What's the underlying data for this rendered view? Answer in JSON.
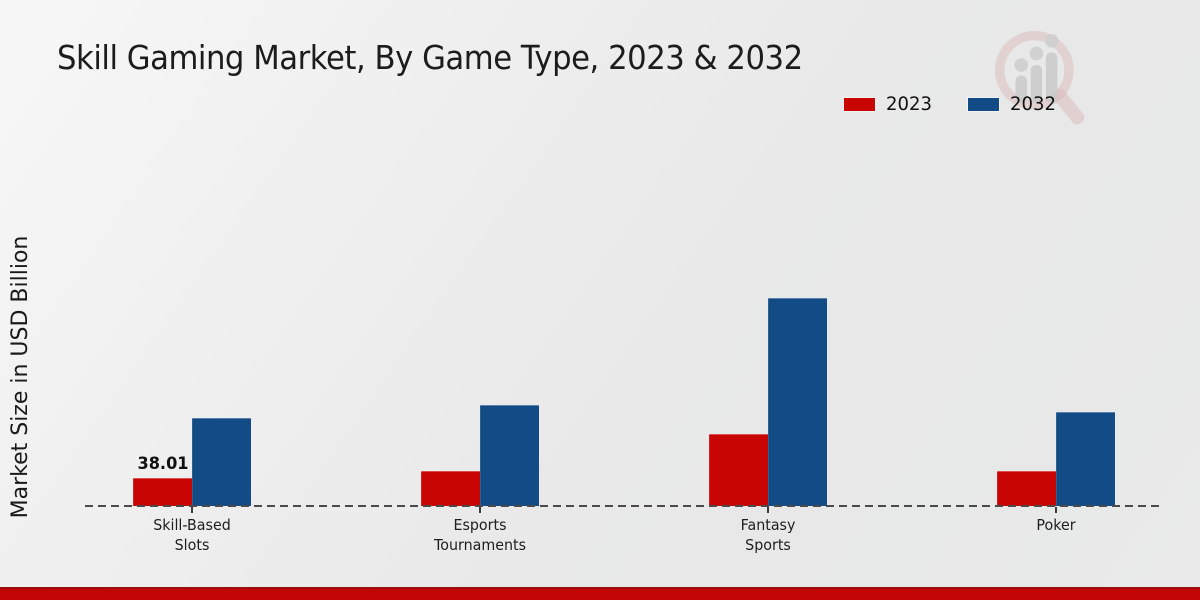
{
  "header": {
    "title": "Skill Gaming Market, By Game Type, 2023 & 2032"
  },
  "axis": {
    "y_label": "Market Size in USD Billion"
  },
  "legend": {
    "items": [
      {
        "label": "2023",
        "color": "#c90504"
      },
      {
        "label": "2032",
        "color": "#134b86"
      }
    ]
  },
  "icons": {
    "watermark": "magnifier-bar-chart-logo"
  },
  "footer": {
    "accent_color": "#c20505"
  },
  "chart_data": {
    "type": "bar",
    "title": "Skill Gaming Market, By Game Type, 2023 & 2032",
    "xlabel": "",
    "ylabel": "Market Size in USD Billion",
    "categories": [
      "Skill-Based Slots",
      "Esports Tournaments",
      "Fantasy Sports",
      "Poker"
    ],
    "category_lines": [
      [
        "Skill-Based",
        "Slots"
      ],
      [
        "Esports",
        "Tournaments"
      ],
      [
        "Fantasy",
        "Sports"
      ],
      [
        "Poker"
      ]
    ],
    "series": [
      {
        "name": "2023",
        "color": "#c90504",
        "values": [
          38.01,
          47.5,
          97.8,
          47.5
        ]
      },
      {
        "name": "2032",
        "color": "#134b86",
        "values": [
          119.5,
          137.2,
          282.4,
          127.6
        ]
      }
    ],
    "annotations": [
      {
        "series": 0,
        "category": 0,
        "text": "38.01"
      }
    ],
    "ylim": [
      0,
      310
    ],
    "grid": false,
    "legend_position": "top-right",
    "baseline": "dashed"
  }
}
